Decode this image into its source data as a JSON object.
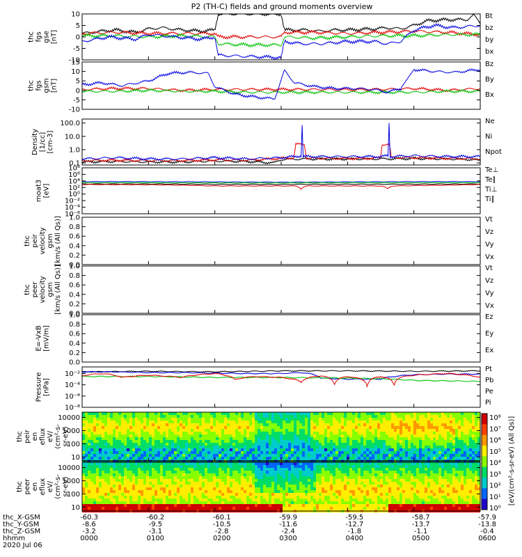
{
  "title": "P2 (TH-C) fields and ground moments overview",
  "chart_data": [
    {
      "id": "fgs_gse",
      "type": "line",
      "ylabel": [
        "thc",
        "fgs",
        "gse",
        "[nT]"
      ],
      "ylim": [
        -10,
        10
      ],
      "yticks": [
        -10,
        -5,
        0,
        5,
        10
      ],
      "ytick_labels": [
        "-10",
        "-5",
        "0",
        "5",
        "10"
      ],
      "legend": [
        {
          "name": "Bt",
          "color": "#000000"
        },
        {
          "name": "bz",
          "color": "#e00000"
        },
        {
          "name": "by",
          "color": "#00c000"
        },
        {
          "name": "bx",
          "color": "#0000e0"
        }
      ],
      "series": [
        {
          "name": "Bt",
          "color": "#000000",
          "x": [
            0,
            0.3,
            0.5,
            0.8,
            1.0,
            1.2,
            1.5,
            1.8,
            2.0,
            2.05,
            2.5,
            2.8,
            3.0,
            3.05,
            3.2,
            3.4,
            3.6,
            3.8,
            4.0,
            4.4,
            4.6,
            4.8,
            5.0,
            5.2,
            5.5,
            5.8,
            5.9,
            6.0
          ],
          "values": [
            1.5,
            2.5,
            3,
            2,
            3.5,
            4,
            3,
            2.5,
            3,
            10,
            10,
            10,
            10,
            3,
            3,
            3,
            2.5,
            3,
            3,
            3.5,
            4,
            3.5,
            5,
            7,
            7.5,
            7.5,
            9.5,
            6
          ]
        },
        {
          "name": "bz",
          "color": "#e00000",
          "x": [
            0,
            0.5,
            1.0,
            1.5,
            2.0,
            2.05,
            2.5,
            3.0,
            3.05,
            3.5,
            4.0,
            4.5,
            5.0,
            5.5,
            6.0
          ],
          "values": [
            1.5,
            2,
            1.5,
            1.5,
            1.5,
            0,
            0,
            0,
            2,
            2,
            1.5,
            2,
            2.5,
            2,
            1
          ]
        },
        {
          "name": "by",
          "color": "#00c000",
          "x": [
            0,
            0.5,
            1.0,
            1.5,
            2.0,
            2.05,
            2.5,
            3.0,
            3.05,
            3.5,
            4.0,
            4.5,
            5.0,
            5.5,
            6.0
          ],
          "values": [
            0.5,
            0.5,
            0,
            0.5,
            0,
            -3,
            -3.5,
            -3.5,
            0,
            -0.5,
            0,
            0.5,
            0.5,
            1,
            1
          ]
        },
        {
          "name": "bx",
          "color": "#0000e0",
          "x": [
            0,
            0.4,
            0.8,
            1.0,
            1.4,
            1.8,
            2.0,
            2.05,
            2.5,
            3.0,
            3.05,
            3.3,
            3.6,
            4.0,
            4.4,
            4.6,
            4.8,
            5.0,
            5.3,
            5.6,
            6.0
          ],
          "values": [
            -2,
            0,
            -1,
            1,
            0,
            -1,
            0,
            -8,
            -8.5,
            -9,
            -2,
            -3,
            -3,
            -2,
            -2,
            -3,
            -2,
            3,
            5,
            4,
            5
          ]
        }
      ]
    },
    {
      "id": "fgs_gsm",
      "type": "line",
      "ylabel": [
        "thc",
        "fgs",
        "gsm",
        "[nT]"
      ],
      "ylim": [
        -10,
        15
      ],
      "yticks": [
        -10,
        -5,
        0,
        5,
        10,
        15
      ],
      "ytick_labels": [
        "-10",
        "-5",
        "0",
        "5",
        "10",
        "15"
      ],
      "legend": [
        {
          "name": "Bz",
          "color": "#e00000"
        },
        {
          "name": "By",
          "color": "#00c000"
        },
        {
          "name": "Bx",
          "color": "#0000e0"
        }
      ],
      "series": [
        {
          "name": "Bz",
          "color": "#e00000",
          "x": [
            0,
            0.5,
            1.0,
            1.5,
            2.0,
            2.5,
            3.0,
            3.5,
            4.0,
            4.5,
            5.0,
            5.5,
            6.0
          ],
          "values": [
            0.5,
            1,
            1,
            0,
            0.5,
            0.5,
            0.5,
            0.5,
            0.5,
            0.5,
            1,
            0,
            1
          ]
        },
        {
          "name": "By",
          "color": "#00c000",
          "x": [
            0,
            0.5,
            1.0,
            1.5,
            2.0,
            2.5,
            3.0,
            3.5,
            4.0,
            4.5,
            5.0,
            5.5,
            6.0
          ],
          "values": [
            -0.5,
            -0.5,
            0,
            -0.5,
            -0.5,
            -1,
            -1,
            -1,
            -1,
            -1,
            -1,
            -0.5,
            -0.5
          ]
        },
        {
          "name": "Bx",
          "color": "#0000e0",
          "x": [
            0,
            0.3,
            0.6,
            1.0,
            1.3,
            1.6,
            1.9,
            2.0,
            2.3,
            2.6,
            2.9,
            3.05,
            3.2,
            3.5,
            3.8,
            4.1,
            4.4,
            4.6,
            4.8,
            5.0,
            5.3,
            5.6,
            6.0
          ],
          "values": [
            3,
            4,
            2.5,
            5,
            9,
            9.5,
            9,
            2,
            -2,
            -3.5,
            -4.5,
            10.5,
            4,
            2,
            1,
            1,
            0.5,
            -1,
            1,
            11,
            10,
            9.5,
            11
          ]
        }
      ]
    },
    {
      "id": "density",
      "type": "line",
      "yscale": "log",
      "ylabel": [
        "Density",
        "[1/cc]",
        "[cm-3]"
      ],
      "ylim": [
        0.07,
        200
      ],
      "yticks": [
        0.1,
        1,
        10,
        100
      ],
      "ytick_labels": [
        "0.1",
        "1.0",
        "10.0",
        "100.0"
      ],
      "legend": [
        {
          "name": "Ne",
          "color": "#e00000"
        },
        {
          "name": "Ni",
          "color": "#000000"
        },
        {
          "name": "Npot",
          "color": "#0000e0"
        }
      ],
      "series": [
        {
          "name": "Ni",
          "color": "#000000",
          "x": [
            0,
            0.5,
            1.0,
            1.5,
            2.0,
            2.5,
            2.9,
            3.0,
            3.3,
            3.5,
            4.0,
            4.5,
            5.0,
            5.5,
            5.9,
            6.0
          ],
          "values": [
            0.12,
            0.13,
            0.12,
            0.12,
            0.14,
            0.13,
            0.1,
            0.18,
            0.2,
            0.2,
            0.2,
            0.2,
            0.22,
            0.2,
            0.18,
            0.15
          ]
        },
        {
          "name": "Ne",
          "color": "#e00000",
          "x": [
            0,
            0.5,
            1.0,
            1.5,
            2.0,
            2.5,
            3.0,
            3.2,
            3.22,
            3.35,
            3.37,
            3.6,
            4.0,
            4.4,
            4.5,
            4.52,
            4.63,
            4.65,
            5.0,
            5.5,
            6.0
          ],
          "values": [
            0.15,
            0.16,
            0.15,
            0.15,
            0.17,
            0.16,
            0.22,
            0.25,
            2.5,
            2.5,
            0.22,
            0.22,
            0.22,
            0.22,
            0.25,
            2.5,
            2.5,
            0.25,
            0.25,
            0.22,
            0.2
          ]
        },
        {
          "name": "Npot",
          "color": "#0000e0",
          "x": [
            0,
            0.5,
            1.0,
            1.5,
            2.0,
            2.5,
            3.0,
            3.2,
            3.3,
            3.31,
            3.32,
            3.6,
            4.0,
            4.5,
            4.62,
            4.63,
            4.64,
            5.0,
            5.5,
            6.0
          ],
          "values": [
            0.2,
            0.25,
            0.2,
            0.2,
            0.25,
            0.2,
            0.25,
            0.3,
            0.35,
            150,
            0.3,
            0.3,
            0.3,
            0.3,
            0.35,
            160,
            0.3,
            0.35,
            0.3,
            0.3
          ]
        }
      ]
    },
    {
      "id": "moat3",
      "type": "line",
      "yscale": "log",
      "ylabel": [
        "moat3",
        "[eV]"
      ],
      "ylim": [
        1e-06,
        100000000.0
      ],
      "yticks": [
        1e-06,
        0.0001,
        0.01,
        1,
        100.0,
        10000.0,
        1000000.0,
        100000000.0
      ],
      "ytick_labels": [
        "10⁻⁶",
        "10⁻⁴",
        "10⁻²",
        "10⁰",
        "10²",
        "10⁴",
        "10⁶",
        "10⁸"
      ],
      "legend": [
        {
          "name": "Te⊥",
          "color": "#e00000"
        },
        {
          "name": "Te∥",
          "color": "#000000"
        },
        {
          "name": "Ti⊥",
          "color": "#0000e0"
        },
        {
          "name": "Ti∥",
          "color": "#00c000"
        }
      ],
      "series": [
        {
          "name": "Ti⊥",
          "color": "#0000e0",
          "x": [
            0,
            1,
            2,
            3,
            4,
            5,
            6
          ],
          "values": [
            6000,
            6000,
            5000,
            4000,
            5000,
            6000,
            6000
          ]
        },
        {
          "name": "Ti∥",
          "color": "#00c000",
          "x": [
            0,
            1,
            2,
            3,
            4,
            5,
            6
          ],
          "values": [
            3000,
            3000,
            2500,
            2500,
            3000,
            3000,
            3000
          ]
        },
        {
          "name": "Te∥",
          "color": "#000000",
          "x": [
            0,
            1,
            2,
            3,
            4,
            5,
            6
          ],
          "values": [
            1200,
            1200,
            900,
            900,
            1000,
            1000,
            1200
          ]
        },
        {
          "name": "Te⊥",
          "color": "#e00000",
          "x": [
            0,
            1,
            2,
            3.2,
            3.3,
            3.4,
            4.5,
            4.6,
            4.7,
            5.5,
            6
          ],
          "values": [
            800,
            700,
            300,
            300,
            30,
            300,
            300,
            30,
            300,
            500,
            800
          ]
        }
      ]
    },
    {
      "id": "peir_velocity",
      "type": "line",
      "ylabel": [
        "thc",
        "peir",
        "velocity",
        "gsm",
        "[km/s (All Qs)]"
      ],
      "ylim": [
        0,
        1
      ],
      "yticks": [
        0,
        0.2,
        0.4,
        0.6,
        0.8,
        1.0
      ],
      "ytick_labels": [
        "0.0",
        "0.2",
        "0.4",
        "0.6",
        "0.8",
        "1.0"
      ],
      "legend": [
        {
          "name": "Vt",
          "color": "#000000"
        },
        {
          "name": "Vz",
          "color": "#e00000"
        },
        {
          "name": "Vy",
          "color": "#00c000"
        },
        {
          "name": "Vx",
          "color": "#0000e0"
        }
      ],
      "series": []
    },
    {
      "id": "peer_velocity",
      "type": "line",
      "ylabel": [
        "thc",
        "peer",
        "velocity",
        "gsm",
        "[km/s (All Qs)]"
      ],
      "ylim": [
        0,
        1
      ],
      "yticks": [
        0,
        0.2,
        0.4,
        0.6,
        0.8,
        1.0
      ],
      "ytick_labels": [
        "0.0",
        "0.2",
        "0.4",
        "0.6",
        "0.8",
        "1.0"
      ],
      "legend": [
        {
          "name": "Vt",
          "color": "#000000"
        },
        {
          "name": "Vz",
          "color": "#e00000"
        },
        {
          "name": "Vy",
          "color": "#00c000"
        },
        {
          "name": "Vx",
          "color": "#0000e0"
        }
      ],
      "series": []
    },
    {
      "id": "efield",
      "type": "line",
      "ylabel": [
        "E=-VxB",
        "[mV/m]"
      ],
      "ylim": [
        0,
        1
      ],
      "yticks": [
        0,
        0.2,
        0.4,
        0.6,
        0.8,
        1.0
      ],
      "ytick_labels": [
        "0.0",
        "0.2",
        "0.4",
        "0.6",
        "0.8",
        "1.0"
      ],
      "legend": [
        {
          "name": "Ez",
          "color": "#e00000"
        },
        {
          "name": "Ey",
          "color": "#00c000"
        },
        {
          "name": "Ex",
          "color": "#0000e0"
        }
      ],
      "series": []
    },
    {
      "id": "pressure",
      "type": "line",
      "yscale": "log",
      "ylabel": [
        "Pressure",
        "[nPa]"
      ],
      "ylim": [
        1e-08,
        0.15
      ],
      "yticks": [
        1e-08,
        1e-06,
        0.0001,
        0.01
      ],
      "ytick_labels": [
        "10⁻⁸",
        "10⁻⁶",
        "10⁻⁴",
        "10⁻²"
      ],
      "legend": [
        {
          "name": "Pt",
          "color": "#000000"
        },
        {
          "name": "Pb",
          "color": "#e00000"
        },
        {
          "name": "Pe",
          "color": "#00c000"
        },
        {
          "name": "Pi",
          "color": "#0000e0"
        }
      ],
      "series": [
        {
          "name": "Pt",
          "color": "#000000",
          "x": [
            0,
            1,
            2,
            3,
            4,
            5,
            6
          ],
          "values": [
            0.02,
            0.025,
            0.02,
            0.03,
            0.03,
            0.025,
            0.03
          ]
        },
        {
          "name": "Pi",
          "color": "#0000e0",
          "x": [
            0,
            0.5,
            1,
            1.5,
            2,
            2.5,
            3,
            3.3,
            3.6,
            4,
            4.5,
            5,
            5.5,
            6
          ],
          "values": [
            0.02,
            0.02,
            0.015,
            0.015,
            0.012,
            0.01,
            0.01,
            0.015,
            0.0015,
            0.001,
            0.001,
            0.006,
            0.008,
            0.008
          ]
        },
        {
          "name": "Pe",
          "color": "#00c000",
          "x": [
            0,
            1,
            2,
            3,
            4,
            4.5,
            5,
            5.5,
            6
          ],
          "values": [
            0.003,
            0.003,
            0.002,
            0.002,
            0.0015,
            0.0012,
            0.0006,
            0.0005,
            0.0004
          ]
        },
        {
          "name": "Pb",
          "color": "#e00000",
          "x": [
            0,
            0.3,
            0.6,
            1,
            1.5,
            2,
            2.3,
            2.6,
            3,
            3.3,
            3.6,
            3.8,
            4,
            4.3,
            4.5,
            4.7,
            4.8,
            5,
            5.5,
            6
          ],
          "values": [
            0.004,
            0.01,
            0.002,
            0.005,
            0.002,
            0.01,
            0.0008,
            0.003,
            0.002,
            0.0003,
            0.004,
            5e-05,
            0.003,
            1e-05,
            0.003,
            3e-06,
            0.002,
            0.005,
            0.01,
            0.002
          ]
        }
      ]
    },
    {
      "id": "peir_eflux",
      "type": "heatmap",
      "yscale": "log",
      "ylabel": [
        "thc",
        "peir",
        "en",
        "eflux",
        "eV/",
        "(cm²-s-",
        "sr-eV)"
      ],
      "ylim": [
        5,
        25000
      ],
      "yticks": [
        10,
        100,
        1000,
        10000
      ],
      "ytick_labels": [
        "10",
        "100",
        "1000",
        "10000"
      ],
      "reference_line_ev": 5
    },
    {
      "id": "peer_eflux",
      "type": "heatmap",
      "yscale": "log",
      "ylabel": [
        "thc",
        "peer",
        "en",
        "eflux",
        "eV/",
        "(cm²-s-",
        "sr-eV)"
      ],
      "ylim": [
        5,
        25000
      ],
      "yticks": [
        10,
        100,
        1000,
        10000
      ],
      "ytick_labels": [
        "10",
        "100",
        "1000",
        "10000"
      ]
    }
  ],
  "colorbar": {
    "label": "[eV/(cm²-s-sr-eV) (All Qs)]",
    "tick_labels": [
      "10⁸",
      "10⁷",
      "10⁶",
      "10⁵",
      "10⁴",
      "10³",
      "10²",
      "10¹",
      "10⁰"
    ],
    "colors": [
      "#d00000",
      "#ff4000",
      "#ff9900",
      "#ffee00",
      "#88ff00",
      "#00dd66",
      "#00cccc",
      "#0066ff",
      "#2200cc"
    ]
  },
  "x_axis": {
    "range_hours": [
      0,
      6
    ],
    "row_labels": [
      "thc_X-GSM",
      "thc_Y-GSM",
      "thc_Z-GSM",
      "hhmm"
    ],
    "date": "2020 Jul 06",
    "columns": [
      {
        "x": "-60.3",
        "y": "-8.6",
        "z": "-3.2",
        "hhmm": "0000"
      },
      {
        "x": "-60.2",
        "y": "-9.5",
        "z": "-3.1",
        "hhmm": "0100"
      },
      {
        "x": "-60.1",
        "y": "-10.5",
        "z": "-2.8",
        "hhmm": "0200"
      },
      {
        "x": "-59.9",
        "y": "-11.6",
        "z": "-2.4",
        "hhmm": "0300"
      },
      {
        "x": "-59.5",
        "y": "-12.7",
        "z": "-1.8",
        "hhmm": "0400"
      },
      {
        "x": "-58.7",
        "y": "-13.7",
        "z": "-1.1",
        "hhmm": "0500"
      },
      {
        "x": "-57.9",
        "y": "-13.8",
        "z": "-0.4",
        "hhmm": "0600"
      }
    ]
  }
}
